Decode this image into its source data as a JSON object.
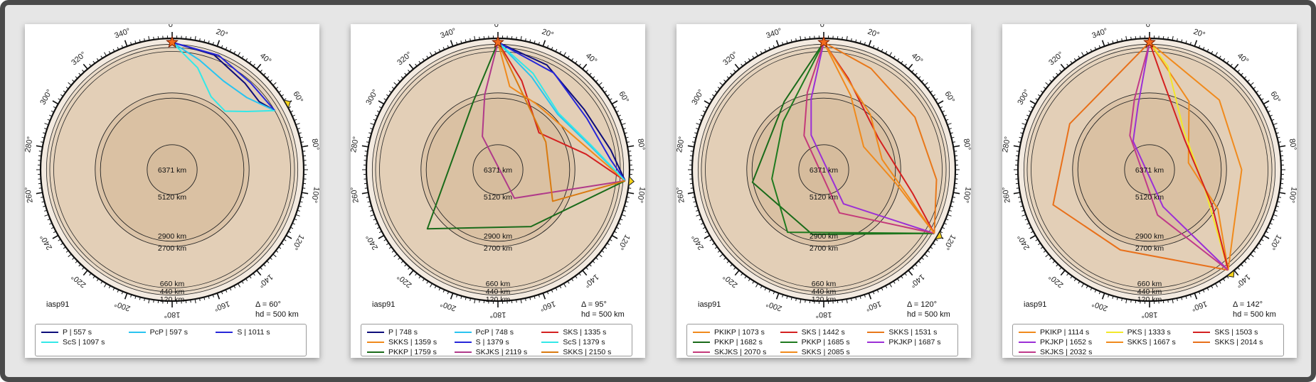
{
  "panels": [
    {
      "model": "iasp91",
      "delta_label": "Δ = 60°",
      "hd_label": "hd = 500 km",
      "distance_deg": 60,
      "depth_labels": [
        "6371 km",
        "5120 km",
        "2900 km",
        "2700 km",
        "660 km",
        "440 km",
        "120 km"
      ],
      "legend": [
        {
          "label": "P | 557 s",
          "color": "#0d0d7a"
        },
        {
          "label": "PcP | 597 s",
          "color": "#29c4f0"
        },
        {
          "label": "S | 1011 s",
          "color": "#2626d9"
        },
        {
          "label": "ScS | 1097 s",
          "color": "#33e8e8"
        }
      ]
    },
    {
      "model": "iasp91",
      "delta_label": "Δ = 95°",
      "hd_label": "hd = 500 km",
      "distance_deg": 95,
      "depth_labels": [
        "6371 km",
        "5120 km",
        "2900 km",
        "2700 km",
        "660 km",
        "440 km",
        "120 km"
      ],
      "legend": [
        {
          "label": "P | 748 s",
          "color": "#0d0d7a"
        },
        {
          "label": "PcP | 748 s",
          "color": "#29c4f0"
        },
        {
          "label": "SKS | 1335 s",
          "color": "#d42020"
        },
        {
          "label": "SKKS | 1359 s",
          "color": "#f08a1c"
        },
        {
          "label": "S | 1379 s",
          "color": "#2626d9"
        },
        {
          "label": "ScS | 1379 s",
          "color": "#33e8e8"
        },
        {
          "label": "PKKP | 1759 s",
          "color": "#1a6b1a"
        },
        {
          "label": "SKJKS | 2119 s",
          "color": "#b03a8a"
        },
        {
          "label": "SKKS | 2150 s",
          "color": "#d97a10"
        }
      ]
    },
    {
      "model": "iasp91",
      "delta_label": "Δ = 120°",
      "hd_label": "hd = 500 km",
      "distance_deg": 120,
      "depth_labels": [
        "6371 km",
        "5120 km",
        "2900 km",
        "2700 km",
        "660 km",
        "440 km",
        "120 km"
      ],
      "legend": [
        {
          "label": "PKIKP | 1073 s",
          "color": "#f08a1c"
        },
        {
          "label": "SKS | 1442 s",
          "color": "#d42020"
        },
        {
          "label": "SKKS | 1531 s",
          "color": "#e8781a"
        },
        {
          "label": "PKKP | 1682 s",
          "color": "#1a6b1a"
        },
        {
          "label": "PKKP | 1685 s",
          "color": "#1f7a1f"
        },
        {
          "label": "PKJKP | 1687 s",
          "color": "#9b2fd6"
        },
        {
          "label": "SKJKS | 2070 s",
          "color": "#c43a7a"
        },
        {
          "label": "SKKS | 2085 s",
          "color": "#f08a1c"
        }
      ]
    },
    {
      "model": "iasp91",
      "delta_label": "Δ = 142°",
      "hd_label": "hd = 500 km",
      "distance_deg": 142,
      "depth_labels": [
        "6371 km",
        "5120 km",
        "2900 km",
        "2700 km",
        "660 km",
        "440 km",
        "120 km"
      ],
      "legend": [
        {
          "label": "PKIKP | 1114 s",
          "color": "#f08a1c"
        },
        {
          "label": "PKS | 1333 s",
          "color": "#f2e82a"
        },
        {
          "label": "SKS | 1503 s",
          "color": "#d42020"
        },
        {
          "label": "PKJKP | 1652 s",
          "color": "#9b2fd6"
        },
        {
          "label": "SKKS | 1667 s",
          "color": "#f08a1c"
        },
        {
          "label": "SKKS | 2014 s",
          "color": "#e8701a"
        },
        {
          "label": "SKJKS | 2032 s",
          "color": "#c03a8a"
        }
      ]
    }
  ]
}
